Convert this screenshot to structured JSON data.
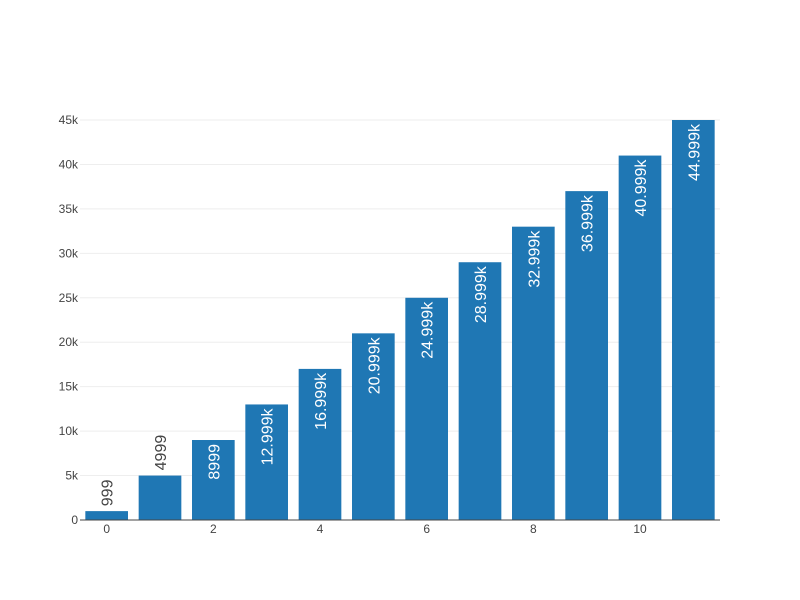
{
  "chart_data": {
    "type": "bar",
    "x": [
      0,
      1,
      2,
      3,
      4,
      5,
      6,
      7,
      8,
      9,
      10,
      11
    ],
    "values": [
      999,
      4999,
      8999,
      12999,
      16999,
      20999,
      24999,
      28999,
      32999,
      36999,
      40999,
      44999
    ],
    "data_labels": [
      "999",
      "4999",
      "8999",
      "12.999k",
      "16.999k",
      "20.999k",
      "24.999k",
      "28.999k",
      "32.999k",
      "36.999k",
      "40.999k",
      "44.999k"
    ],
    "x_ticks": [
      {
        "value": 0,
        "label": "0"
      },
      {
        "value": 2,
        "label": "2"
      },
      {
        "value": 4,
        "label": "4"
      },
      {
        "value": 6,
        "label": "6"
      },
      {
        "value": 8,
        "label": "8"
      },
      {
        "value": 10,
        "label": "10"
      }
    ],
    "y_ticks": [
      {
        "value": 0,
        "label": "0"
      },
      {
        "value": 5000,
        "label": "5k"
      },
      {
        "value": 10000,
        "label": "10k"
      },
      {
        "value": 15000,
        "label": "15k"
      },
      {
        "value": 20000,
        "label": "20k"
      },
      {
        "value": 25000,
        "label": "25k"
      },
      {
        "value": 30000,
        "label": "30k"
      },
      {
        "value": 35000,
        "label": "35k"
      },
      {
        "value": 40000,
        "label": "40k"
      },
      {
        "value": 45000,
        "label": "45k"
      }
    ],
    "xlim": [
      -0.5,
      11.5
    ],
    "ylim": [
      0,
      45000
    ],
    "grid": true,
    "legend": "none",
    "bar_color": "#1f77b4",
    "label_inside_color": "#ffffff",
    "label_outside_color": "#444444"
  }
}
